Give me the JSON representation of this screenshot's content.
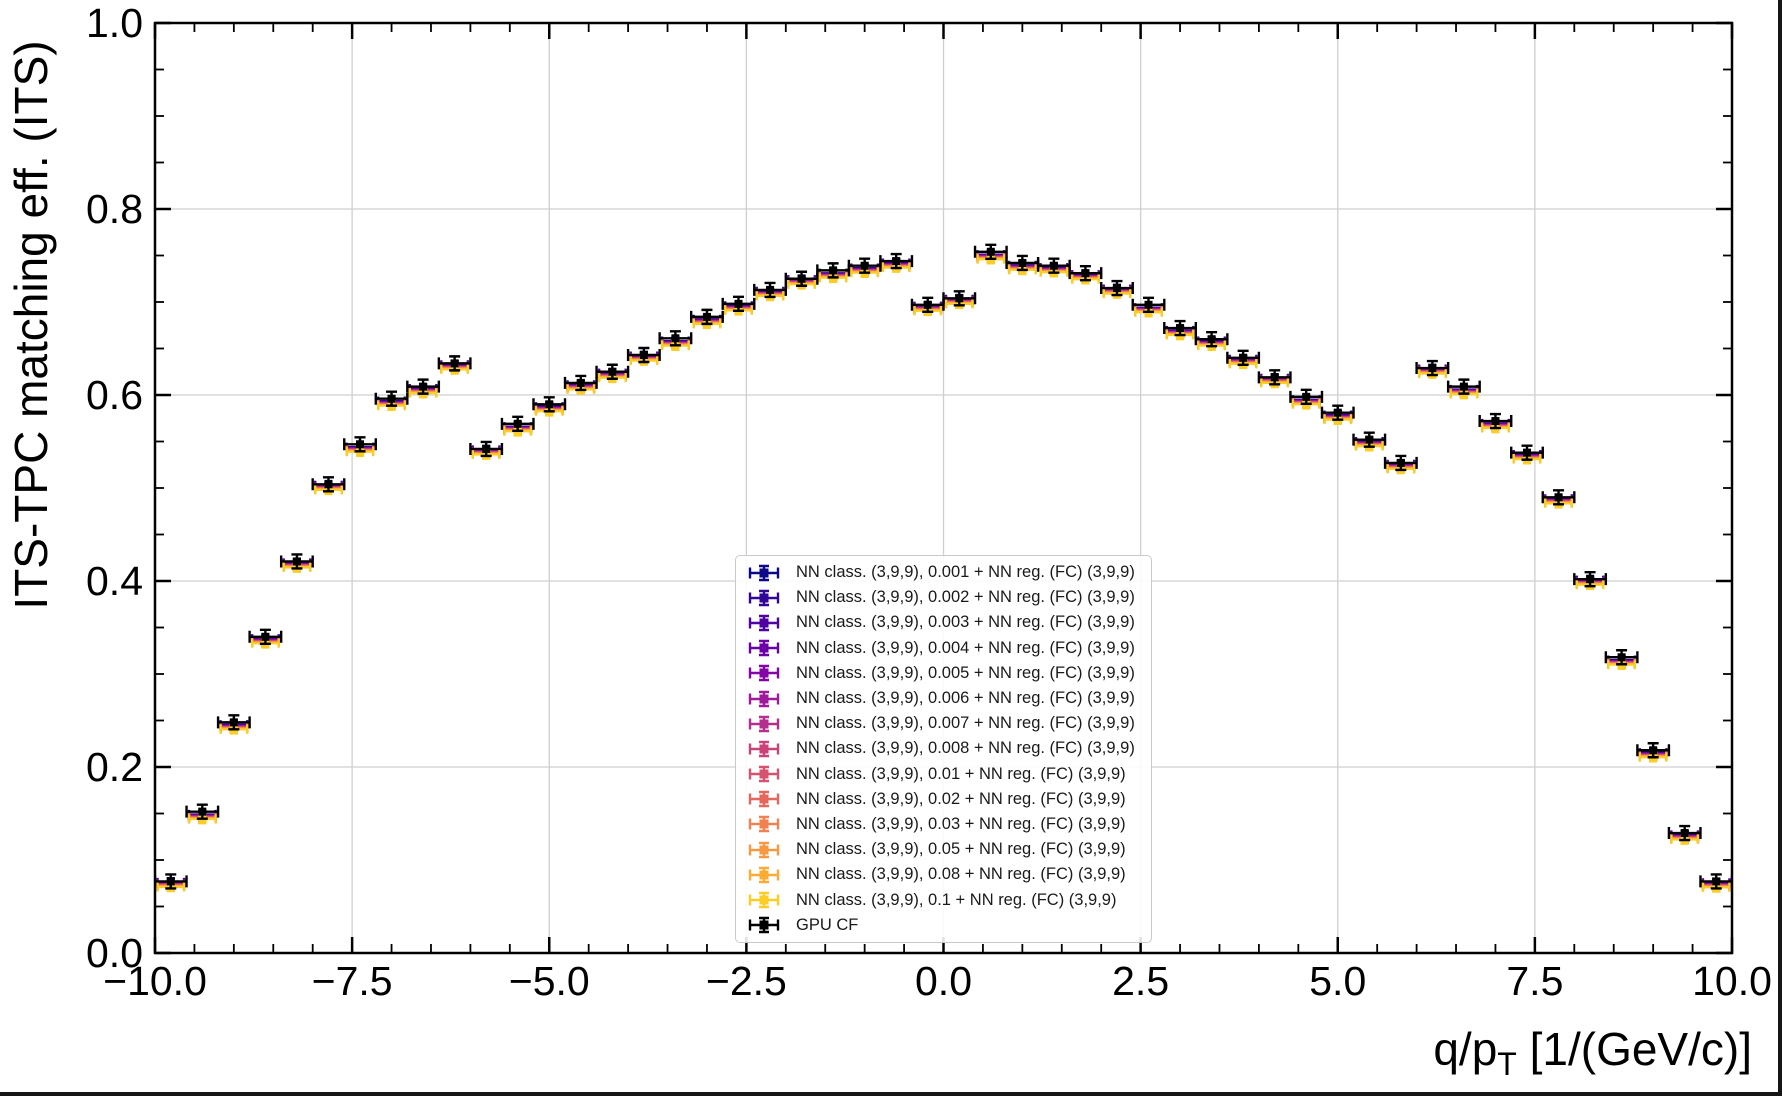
{
  "figure": {
    "background": "#ffffff",
    "outer_border_color": "#161616"
  },
  "axes": {
    "ylabel": "ITS-TPC matching eff. (ITS)",
    "xlabel_prefix": "q/p",
    "xlabel_sub": "T",
    "xlabel_suffix": " [1/(GeV/c)]",
    "x_tick_values": [
      -10,
      -7.5,
      -5,
      -2.5,
      0,
      2.5,
      5,
      7.5,
      10
    ],
    "x_tick_labels": [
      "−10.0",
      "−7.5",
      "−5.0",
      "−2.5",
      "0.0",
      "2.5",
      "5.0",
      "7.5",
      "10.0"
    ],
    "y_tick_values": [
      0,
      0.2,
      0.4,
      0.6,
      0.8,
      1.0
    ],
    "y_tick_labels": [
      "0.0",
      "0.2",
      "0.4",
      "0.6",
      "0.8",
      "1.0"
    ],
    "x_minor_step": 0.5,
    "y_minor_step": 0.05,
    "grid_color": "#cfcfcf",
    "spine_color": "#000000"
  },
  "chart_data": {
    "type": "scatter",
    "title": "",
    "xlabel": "q/pT [1/(GeV/c)]",
    "ylabel": "ITS-TPC matching eff. (ITS)",
    "xlim": [
      -10,
      10
    ],
    "ylim": [
      0.0,
      1.0
    ],
    "grid": true,
    "legend_position": "lower center-right inside axes",
    "marker_style": "square with x/y error bars and caps",
    "x_bin_halfwidth": 0.2,
    "x": [
      -9.8,
      -9.4,
      -9.0,
      -8.6,
      -8.2,
      -7.8,
      -7.4,
      -7.0,
      -6.6,
      -6.2,
      -5.8,
      -5.4,
      -5.0,
      -4.6,
      -4.2,
      -3.8,
      -3.4,
      -3.0,
      -2.6,
      -2.2,
      -1.8,
      -1.4,
      -1.0,
      -0.6,
      -0.2,
      0.2,
      0.6,
      1.0,
      1.4,
      1.8,
      2.2,
      2.6,
      3.0,
      3.4,
      3.8,
      4.2,
      4.6,
      5.0,
      5.4,
      5.8,
      6.2,
      6.6,
      7.0,
      7.4,
      7.8,
      8.2,
      8.6,
      9.0,
      9.4,
      9.8
    ],
    "gpu_cf_values": [
      0.077,
      0.152,
      0.248,
      0.34,
      0.421,
      0.504,
      0.547,
      0.596,
      0.609,
      0.634,
      0.542,
      0.569,
      0.59,
      0.613,
      0.625,
      0.643,
      0.661,
      0.684,
      0.698,
      0.713,
      0.725,
      0.734,
      0.739,
      0.744,
      0.697,
      0.704,
      0.754,
      0.742,
      0.739,
      0.731,
      0.715,
      0.697,
      0.672,
      0.66,
      0.64,
      0.619,
      0.598,
      0.581,
      0.552,
      0.527,
      0.629,
      0.609,
      0.572,
      0.538,
      0.49,
      0.402,
      0.318,
      0.218,
      0.129,
      0.077
    ],
    "nn_series_note": "NN curves lie within ~0.008 below the GPU CF points at every bin",
    "series": [
      {
        "name": "NN class. (3,9,9), 0.001 + NN reg. (FC) (3,9,9)",
        "color": "#0d0887",
        "offset": -0.001
      },
      {
        "name": "NN class. (3,9,9), 0.002 + NN reg. (FC) (3,9,9)",
        "color": "#300597",
        "offset": -0.0014
      },
      {
        "name": "NN class. (3,9,9), 0.003 + NN reg. (FC) (3,9,9)",
        "color": "#4f02a2",
        "offset": -0.0018
      },
      {
        "name": "NN class. (3,9,9), 0.004 + NN reg. (FC) (3,9,9)",
        "color": "#6c00a8",
        "offset": -0.0021
      },
      {
        "name": "NN class. (3,9,9), 0.005 + NN reg. (FC) (3,9,9)",
        "color": "#8405a7",
        "offset": -0.0025
      },
      {
        "name": "NN class. (3,9,9), 0.006 + NN reg. (FC) (3,9,9)",
        "color": "#9f1a9b",
        "offset": -0.0029
      },
      {
        "name": "NN class. (3,9,9), 0.007 + NN reg. (FC) (3,9,9)",
        "color": "#b42e8d",
        "offset": -0.0033
      },
      {
        "name": "NN class. (3,9,9), 0.008 + NN reg. (FC) (3,9,9)",
        "color": "#c9437a",
        "offset": -0.0037
      },
      {
        "name": "NN class. (3,9,9), 0.01 + NN reg. (FC) (3,9,9)",
        "color": "#d4536f",
        "offset": -0.004
      },
      {
        "name": "NN class. (3,9,9), 0.02 + NN reg. (FC) (3,9,9)",
        "color": "#e4675e",
        "offset": -0.0044
      },
      {
        "name": "NN class. (3,9,9), 0.03 + NN reg. (FC) (3,9,9)",
        "color": "#f18150",
        "offset": -0.0048
      },
      {
        "name": "NN class. (3,9,9), 0.05 + NN reg. (FC) (3,9,9)",
        "color": "#f69942",
        "offset": -0.0052
      },
      {
        "name": "NN class. (3,9,9), 0.08 + NN reg. (FC) (3,9,9)",
        "color": "#fcab35",
        "offset": -0.0056
      },
      {
        "name": "NN class. (3,9,9), 0.1 + NN reg. (FC) (3,9,9)",
        "color": "#fcce25",
        "offset": -0.006
      },
      {
        "name": "GPU CF",
        "color": "#000000",
        "offset": 0.0
      }
    ]
  }
}
